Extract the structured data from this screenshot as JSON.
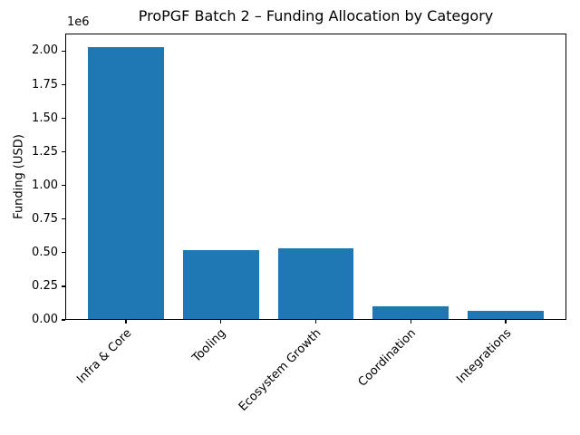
{
  "figure": {
    "background_color": "#ffffff",
    "text_color": "#000000",
    "spine_color": "#000000"
  },
  "chart_data": {
    "type": "bar",
    "title": "ProPGF Batch 2 – Funding Allocation by Category",
    "xlabel": "",
    "ylabel": "Funding (USD)",
    "y_offset_label": "1e6",
    "categories": [
      "Infra & Core",
      "Tooling",
      "Ecosystem Growth",
      "Coordination",
      "Integrations"
    ],
    "values": [
      2030000,
      520000,
      530000,
      100000,
      65000
    ],
    "bar_color": "#1f77b4",
    "bar_width": 0.8,
    "xlim": [
      -0.64,
      4.64
    ],
    "ylim": [
      0,
      2131500
    ],
    "yticks": [
      0,
      250000,
      500000,
      750000,
      1000000,
      1250000,
      1500000,
      1750000,
      2000000
    ],
    "ytick_labels": [
      "0.00",
      "0.25",
      "0.50",
      "0.75",
      "1.00",
      "1.25",
      "1.50",
      "1.75",
      "2.00"
    ],
    "xtick_rotation": 45,
    "grid": false,
    "legend": null
  }
}
